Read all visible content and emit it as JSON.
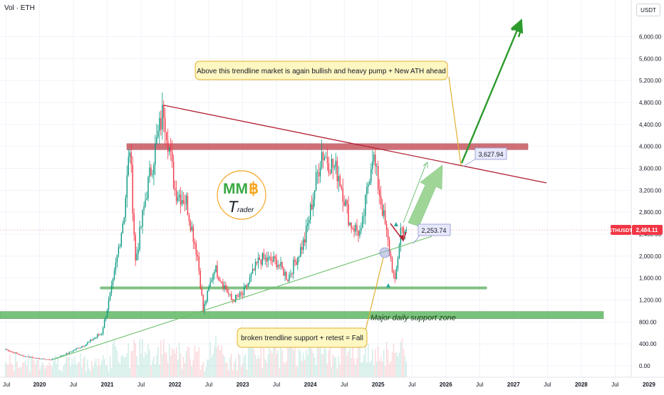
{
  "header": {
    "symbol_label": "Vol · ETH",
    "currency": "USDT"
  },
  "price_tag": {
    "symbol": "ETHUSDT",
    "value": "2,484.11",
    "color": "#f23645"
  },
  "colors": {
    "up": "#089981",
    "down": "#f23645",
    "trendline": "#b22234",
    "support_band": "#4caf50",
    "resistance_band": "#c0404a",
    "arrow": "#2e9b2e"
  },
  "logo": {
    "text_mm": "MM",
    "text_coin": "฿",
    "text_t": "T",
    "text_rader": "rader"
  },
  "annotations": {
    "top_note": "Above this trendline market is again bullish and heavy pump + New ATH ahead",
    "bottom_note": "broken trendline support + retest = Fall",
    "support_zone": "Major daily support zone",
    "label_high": "3,627.94",
    "label_low": "2,253.74"
  },
  "chart_data": {
    "type": "candlestick",
    "y_axis": {
      "ticks": [
        0,
        400,
        800,
        1200,
        1600,
        2000,
        2400,
        2800,
        3200,
        3600,
        4000,
        4400,
        4800,
        5200,
        5600,
        6000
      ],
      "labels": [
        "0.00",
        "400.00",
        "800.00",
        "1,200.00",
        "1,600.00",
        "2,000.00",
        "2,400.00",
        "2,800.00",
        "3,200.00",
        "3,600.00",
        "4,000.00",
        "4,400.00",
        "4,800.00",
        "5,200.00",
        "5,600.00",
        "6,000.00"
      ]
    },
    "x_axis": {
      "labels": [
        "Jul",
        "2020",
        "Jul",
        "2021",
        "Jul",
        "2022",
        "Jul",
        "2023",
        "Jul",
        "2024",
        "Jul",
        "2025",
        "Jul",
        "2026",
        "Jul",
        "2027",
        "Jul",
        "2028",
        "Jul",
        "2029"
      ],
      "dates": [
        "2019-07",
        "2020-01",
        "2020-07",
        "2021-01",
        "2021-07",
        "2022-01",
        "2022-07",
        "2023-01",
        "2023-07",
        "2024-01",
        "2024-07",
        "2025-01",
        "2025-07",
        "2026-01",
        "2026-07",
        "2027-01",
        "2027-07",
        "2028-01",
        "2028-07",
        "2029-01"
      ]
    },
    "price_series": [
      [
        "2019-07",
        300
      ],
      [
        "2019-10",
        180
      ],
      [
        "2020-01",
        130
      ],
      [
        "2020-03",
        110
      ],
      [
        "2020-06",
        230
      ],
      [
        "2020-09",
        380
      ],
      [
        "2020-12",
        600
      ],
      [
        "2021-02",
        1500
      ],
      [
        "2021-04",
        2800
      ],
      [
        "2021-05",
        4000
      ],
      [
        "2021-06",
        1900
      ],
      [
        "2021-08",
        3200
      ],
      [
        "2021-11",
        4700
      ],
      [
        "2022-01",
        3200
      ],
      [
        "2022-03",
        3000
      ],
      [
        "2022-05",
        2000
      ],
      [
        "2022-06",
        1000
      ],
      [
        "2022-08",
        1800
      ],
      [
        "2022-11",
        1200
      ],
      [
        "2023-01",
        1300
      ],
      [
        "2023-04",
        1950
      ],
      [
        "2023-07",
        1900
      ],
      [
        "2023-09",
        1600
      ],
      [
        "2023-12",
        2300
      ],
      [
        "2024-03",
        3900
      ],
      [
        "2024-06",
        3500
      ],
      [
        "2024-08",
        2600
      ],
      [
        "2024-10",
        2400
      ],
      [
        "2024-12",
        3900
      ],
      [
        "2025-02",
        2700
      ],
      [
        "2025-04",
        1500
      ],
      [
        "2025-05",
        2500
      ],
      [
        "2025-06",
        2484
      ]
    ],
    "levels": {
      "resistance_band": [
        3940,
        4050
      ],
      "support_line": [
        1400,
        1440
      ],
      "major_support_zone": [
        860,
        990
      ]
    },
    "trendline_down": [
      [
        "2021-11",
        4750
      ],
      [
        "2026-11",
        3350
      ]
    ],
    "trendline_up": [
      [
        "2020-03",
        100
      ],
      [
        "2025-06",
        2250
      ]
    ]
  }
}
